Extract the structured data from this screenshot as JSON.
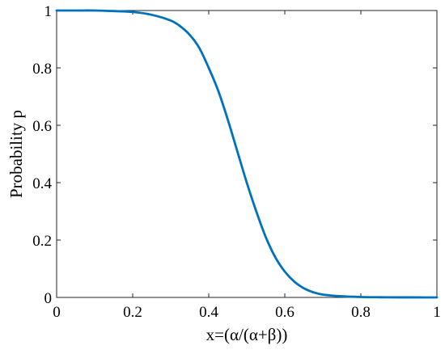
{
  "chart_data": {
    "type": "line",
    "xlabel": "x=(α/(α+β))",
    "ylabel": "Probability p",
    "xlim": [
      0,
      1
    ],
    "ylim": [
      0,
      1
    ],
    "x_ticks": [
      0,
      0.2,
      0.4,
      0.6,
      0.8,
      1
    ],
    "x_tick_labels": [
      "0",
      "0.2",
      "0.4",
      "0.6",
      "0.8",
      "1"
    ],
    "y_ticks": [
      0,
      0.2,
      0.4,
      0.6,
      0.8,
      1
    ],
    "y_tick_labels": [
      "0",
      "0.2",
      "0.4",
      "0.6",
      "0.8",
      "1"
    ],
    "grid": false,
    "series": [
      {
        "color": "#0072BD",
        "x": [
          0,
          0.05,
          0.1,
          0.15,
          0.2,
          0.25,
          0.3,
          0.325,
          0.35,
          0.375,
          0.4,
          0.425,
          0.45,
          0.475,
          0.5,
          0.525,
          0.55,
          0.575,
          0.6,
          0.625,
          0.65,
          0.675,
          0.7,
          0.75,
          0.8,
          0.85,
          0.9,
          0.95,
          1
        ],
        "y": [
          1.0,
          1.0,
          1.0,
          0.998,
          0.995,
          0.985,
          0.965,
          0.945,
          0.915,
          0.87,
          0.8,
          0.72,
          0.62,
          0.51,
          0.4,
          0.3,
          0.21,
          0.14,
          0.09,
          0.055,
          0.032,
          0.018,
          0.01,
          0.004,
          0.0015,
          0.0006,
          0.0002,
          0.0001,
          0.0
        ]
      }
    ]
  }
}
